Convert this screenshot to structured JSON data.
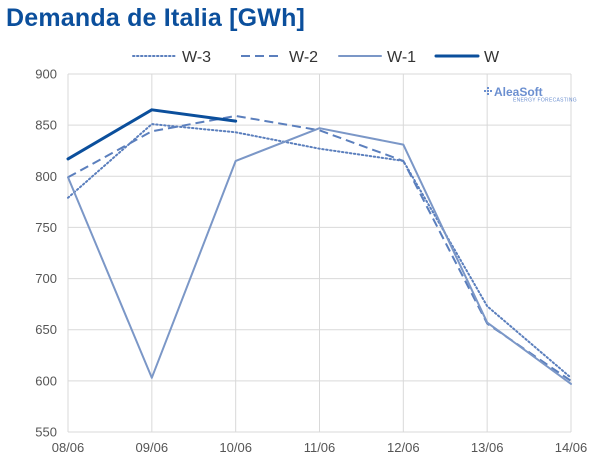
{
  "chart_data": {
    "type": "line",
    "title": "Demanda de Italia [GWh]",
    "xlabel": "",
    "ylabel": "",
    "categories": [
      "08/06",
      "09/06",
      "10/06",
      "11/06",
      "12/06",
      "13/06",
      "14/06"
    ],
    "ylim": [
      550,
      900
    ],
    "yticks": [
      550,
      600,
      650,
      700,
      750,
      800,
      850,
      900
    ],
    "grid": true,
    "legend_position": "top",
    "series": [
      {
        "name": "W-3",
        "color": "#5b7fbd",
        "style": "dotted",
        "values": [
          779,
          851,
          843,
          827,
          815,
          673,
          603
        ]
      },
      {
        "name": "W-2",
        "color": "#5b7fbd",
        "style": "dashed",
        "values": [
          799,
          844,
          859,
          845,
          815,
          656,
          600
        ]
      },
      {
        "name": "W-1",
        "color": "#7b97c7",
        "style": "solid",
        "values": [
          799,
          603,
          815,
          847,
          831,
          657,
          597
        ]
      },
      {
        "name": "W",
        "color": "#0b4f9c",
        "style": "solid-bold",
        "values": [
          817,
          865,
          854,
          null,
          null,
          null,
          null
        ]
      }
    ]
  },
  "logo": {
    "name": "AleaSoft",
    "tagline": "ENERGY FORECASTING"
  }
}
